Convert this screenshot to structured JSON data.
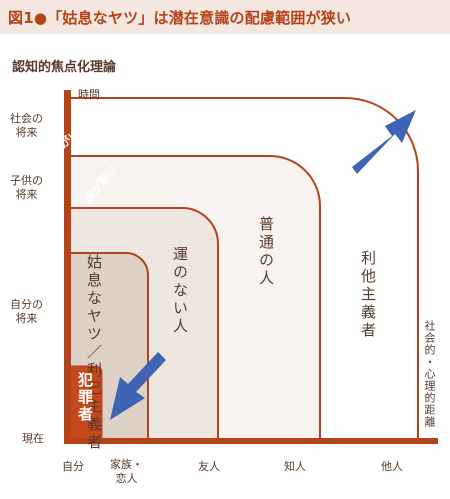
{
  "title": "図1●「姑息なヤツ」は潜在意識の配慮範囲が狭い",
  "subtitle": "認知的焦点化理論",
  "axes": {
    "y_label": "時間",
    "x_label": "社会的・心理的距離",
    "y_ticks": {
      "society": "社会の\n将来",
      "children": "子供の\n将来",
      "self": "自分の\n将来",
      "present": "現在"
    },
    "x_ticks": {
      "self": "自分",
      "family": "家族・\n恋人",
      "friends": "友人",
      "acquaintances": "知人",
      "others": "他人"
    }
  },
  "regions": {
    "criminal": "犯罪者",
    "sly": "姑息なヤツ／利己主義者",
    "unlucky": "運のない人",
    "ordinary": "普通の人",
    "altruist": "利他主義者"
  },
  "arrows": {
    "good_luck": "運がいい",
    "bad_luck": "運が悪い"
  },
  "colors": {
    "title": "#b5431a",
    "title_bg": "#f3e7df",
    "axis": "#b5431a",
    "outline": "#b5431a",
    "criminal_fill": "#c5491d",
    "sly_fill": "#ddd0c7",
    "unlucky_fill": "#ede6e1",
    "ordinary_fill": "#f6f3f1",
    "arrow": "#3f63b5"
  }
}
